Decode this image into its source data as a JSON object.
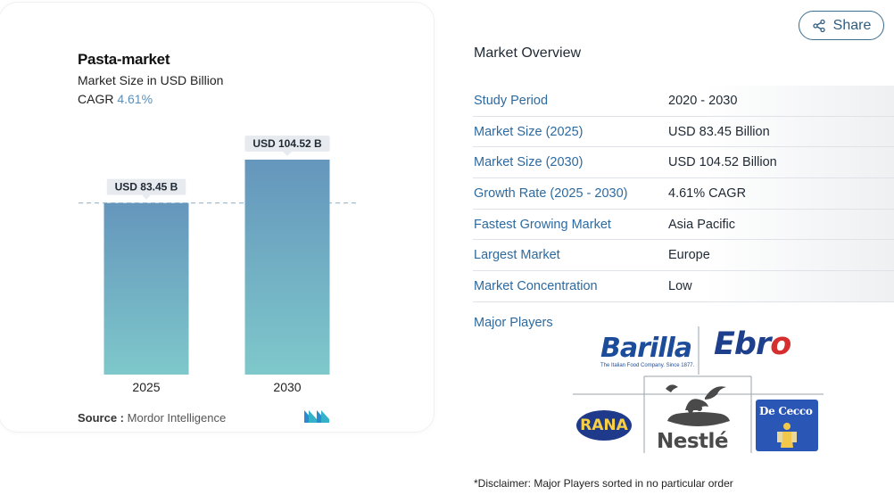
{
  "chart": {
    "title": "Pasta-market",
    "subtitle": "Market Size in USD Billion",
    "cagr_label": "CAGR",
    "cagr_value": "4.61%",
    "source_label": "Source :",
    "source_value": "Mordor Intelligence"
  },
  "chart_data": {
    "type": "bar",
    "title": "Pasta-market",
    "subtitle": "Market Size in USD Billion",
    "categories": [
      "2025",
      "2030"
    ],
    "values": [
      83.45,
      104.52
    ],
    "data_labels": [
      "USD 83.45 B",
      "USD 104.52 B"
    ],
    "xlabel": "",
    "ylabel": "",
    "ylim": [
      0,
      104.52
    ],
    "grid": false,
    "reference_line": 83.45,
    "bar_color_top": "#6596bc",
    "bar_color_bottom": "#7ec8cb"
  },
  "share": {
    "label": "Share",
    "icon": "share-icon"
  },
  "overview": {
    "title": "Market Overview",
    "rows": [
      {
        "key": "Study Period",
        "value": "2020 - 2030"
      },
      {
        "key": "Market Size (2025)",
        "value": "USD 83.45 Billion"
      },
      {
        "key": "Market Size (2030)",
        "value": "USD 104.52 Billion"
      },
      {
        "key": "Growth Rate (2025 - 2030)",
        "value": "4.61% CAGR"
      },
      {
        "key": "Fastest Growing Market",
        "value": "Asia Pacific"
      },
      {
        "key": "Largest Market",
        "value": "Europe"
      },
      {
        "key": "Market Concentration",
        "value": "Low"
      }
    ],
    "players_label": "Major Players"
  },
  "players": {
    "barilla": "Barilla",
    "barilla_tagline": "The Italian Food Company. Since 1877.",
    "ebro": "Ebro",
    "rana": "RANA",
    "nestle": "Nestlé",
    "dececco": "De Cecco"
  },
  "disclaimer": "*Disclaimer: Major Players sorted in no particular order",
  "colors": {
    "accent": "#2d6aa0",
    "brand_blue": "#3b6d8f"
  }
}
